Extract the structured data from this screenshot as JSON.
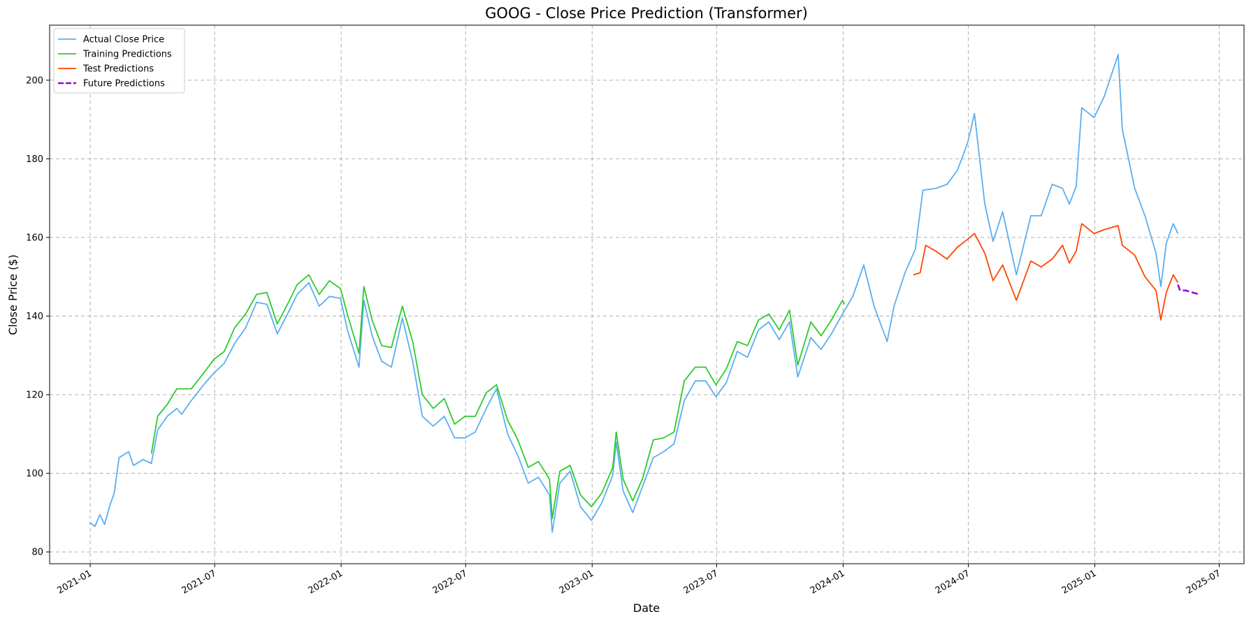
{
  "chart_data": {
    "type": "line",
    "title": "GOOG - Close Price Prediction (Transformer)",
    "xlabel": "Date",
    "ylabel": "Close Price ($)",
    "xlim": [
      "2020-11-03",
      "2025-08-06"
    ],
    "ylim": [
      77,
      214
    ],
    "x_ticks": [
      "2021-01",
      "2021-07",
      "2022-01",
      "2022-07",
      "2023-01",
      "2023-07",
      "2024-01",
      "2024-07",
      "2025-01",
      "2025-07"
    ],
    "y_ticks": [
      80,
      100,
      120,
      140,
      160,
      180,
      200
    ],
    "grid": true,
    "legend_position": "top-left",
    "colors": {
      "actual": "#5aaef2",
      "training": "#2ccb2c",
      "test": "#ff4500",
      "future": "#9400d3"
    },
    "series": [
      {
        "name": "Actual Close Price",
        "color": "#5aaef2",
        "style": "solid",
        "points": [
          [
            "2020-12-31",
            87.5
          ],
          [
            "2021-01-08",
            86.5
          ],
          [
            "2021-01-15",
            89.5
          ],
          [
            "2021-01-22",
            87.0
          ],
          [
            "2021-01-29",
            91.5
          ],
          [
            "2021-02-05",
            95.0
          ],
          [
            "2021-02-12",
            104.0
          ],
          [
            "2021-02-26",
            105.5
          ],
          [
            "2021-03-05",
            102.0
          ],
          [
            "2021-03-19",
            103.5
          ],
          [
            "2021-03-31",
            102.5
          ],
          [
            "2021-04-09",
            111.0
          ],
          [
            "2021-04-23",
            114.5
          ],
          [
            "2021-05-07",
            116.5
          ],
          [
            "2021-05-14",
            115.0
          ],
          [
            "2021-05-28",
            118.5
          ],
          [
            "2021-06-15",
            122.5
          ],
          [
            "2021-06-30",
            125.5
          ],
          [
            "2021-07-15",
            128.0
          ],
          [
            "2021-07-30",
            133.0
          ],
          [
            "2021-08-15",
            137.0
          ],
          [
            "2021-08-31",
            143.5
          ],
          [
            "2021-09-15",
            143.0
          ],
          [
            "2021-09-30",
            135.5
          ],
          [
            "2021-10-15",
            140.5
          ],
          [
            "2021-10-29",
            145.5
          ],
          [
            "2021-11-15",
            148.5
          ],
          [
            "2021-11-30",
            142.5
          ],
          [
            "2021-12-15",
            145.0
          ],
          [
            "2021-12-31",
            144.5
          ],
          [
            "2022-01-10",
            136.5
          ],
          [
            "2022-01-27",
            127.0
          ],
          [
            "2022-02-03",
            144.0
          ],
          [
            "2022-02-15",
            135.0
          ],
          [
            "2022-03-01",
            128.5
          ],
          [
            "2022-03-15",
            127.0
          ],
          [
            "2022-03-31",
            139.5
          ],
          [
            "2022-04-15",
            128.5
          ],
          [
            "2022-04-29",
            114.5
          ],
          [
            "2022-05-15",
            112.0
          ],
          [
            "2022-05-31",
            114.5
          ],
          [
            "2022-06-15",
            109.0
          ],
          [
            "2022-06-30",
            109.0
          ],
          [
            "2022-07-15",
            110.5
          ],
          [
            "2022-07-31",
            116.5
          ],
          [
            "2022-08-15",
            121.5
          ],
          [
            "2022-08-31",
            110.0
          ],
          [
            "2022-09-15",
            104.5
          ],
          [
            "2022-09-30",
            97.5
          ],
          [
            "2022-10-15",
            99.0
          ],
          [
            "2022-10-31",
            94.5
          ],
          [
            "2022-11-04",
            85.0
          ],
          [
            "2022-11-15",
            97.5
          ],
          [
            "2022-11-30",
            100.5
          ],
          [
            "2022-12-15",
            91.5
          ],
          [
            "2022-12-31",
            88.0
          ],
          [
            "2023-01-15",
            92.5
          ],
          [
            "2023-01-31",
            99.5
          ],
          [
            "2023-02-05",
            108.0
          ],
          [
            "2023-02-15",
            95.5
          ],
          [
            "2023-03-01",
            90.0
          ],
          [
            "2023-03-15",
            96.5
          ],
          [
            "2023-03-31",
            104.0
          ],
          [
            "2023-04-15",
            105.5
          ],
          [
            "2023-04-30",
            107.5
          ],
          [
            "2023-05-15",
            118.5
          ],
          [
            "2023-05-31",
            123.5
          ],
          [
            "2023-06-15",
            123.5
          ],
          [
            "2023-06-30",
            119.5
          ],
          [
            "2023-07-15",
            123.0
          ],
          [
            "2023-07-31",
            131.0
          ],
          [
            "2023-08-15",
            129.5
          ],
          [
            "2023-08-31",
            136.5
          ],
          [
            "2023-09-15",
            138.5
          ],
          [
            "2023-09-30",
            134.0
          ],
          [
            "2023-10-15",
            138.5
          ],
          [
            "2023-10-27",
            124.5
          ],
          [
            "2023-11-15",
            134.5
          ],
          [
            "2023-11-30",
            131.5
          ],
          [
            "2023-12-15",
            135.5
          ],
          [
            "2023-12-31",
            140.5
          ],
          [
            "2024-01-15",
            145.0
          ],
          [
            "2024-01-31",
            153.0
          ],
          [
            "2024-02-15",
            142.5
          ],
          [
            "2024-03-05",
            133.5
          ],
          [
            "2024-03-15",
            142.5
          ],
          [
            "2024-03-31",
            151.0
          ],
          [
            "2024-04-15",
            157.0
          ],
          [
            "2024-04-26",
            172.0
          ],
          [
            "2024-05-15",
            172.5
          ],
          [
            "2024-05-31",
            173.5
          ],
          [
            "2024-06-15",
            177.0
          ],
          [
            "2024-06-30",
            184.0
          ],
          [
            "2024-07-10",
            191.5
          ],
          [
            "2024-07-25",
            168.5
          ],
          [
            "2024-08-06",
            159.0
          ],
          [
            "2024-08-20",
            166.5
          ],
          [
            "2024-09-09",
            150.5
          ],
          [
            "2024-09-30",
            165.5
          ],
          [
            "2024-10-15",
            165.5
          ],
          [
            "2024-10-31",
            173.5
          ],
          [
            "2024-11-15",
            172.5
          ],
          [
            "2024-11-25",
            168.5
          ],
          [
            "2024-12-05",
            173.0
          ],
          [
            "2024-12-13",
            193.0
          ],
          [
            "2024-12-31",
            190.5
          ],
          [
            "2025-01-15",
            196.0
          ],
          [
            "2025-02-04",
            206.5
          ],
          [
            "2025-02-10",
            187.5
          ],
          [
            "2025-02-28",
            172.5
          ],
          [
            "2025-03-15",
            165.5
          ],
          [
            "2025-03-31",
            156.0
          ],
          [
            "2025-04-07",
            147.5
          ],
          [
            "2025-04-15",
            158.5
          ],
          [
            "2025-04-25",
            163.5
          ],
          [
            "2025-05-02",
            161.0
          ]
        ]
      },
      {
        "name": "Training Predictions",
        "color": "#2ccb2c",
        "style": "solid",
        "points": [
          [
            "2021-03-31",
            105.0
          ],
          [
            "2021-04-09",
            114.5
          ],
          [
            "2021-04-23",
            117.5
          ],
          [
            "2021-05-07",
            121.5
          ],
          [
            "2021-05-28",
            121.5
          ],
          [
            "2021-06-15",
            125.5
          ],
          [
            "2021-06-30",
            129.0
          ],
          [
            "2021-07-15",
            131.0
          ],
          [
            "2021-07-30",
            137.0
          ],
          [
            "2021-08-15",
            140.5
          ],
          [
            "2021-08-31",
            145.5
          ],
          [
            "2021-09-15",
            146.0
          ],
          [
            "2021-09-30",
            138.0
          ],
          [
            "2021-10-15",
            143.0
          ],
          [
            "2021-10-29",
            148.0
          ],
          [
            "2021-11-15",
            150.5
          ],
          [
            "2021-11-30",
            145.5
          ],
          [
            "2021-12-15",
            149.0
          ],
          [
            "2021-12-31",
            147.0
          ],
          [
            "2022-01-10",
            140.5
          ],
          [
            "2022-01-27",
            130.5
          ],
          [
            "2022-02-03",
            147.5
          ],
          [
            "2022-02-15",
            139.0
          ],
          [
            "2022-03-01",
            132.5
          ],
          [
            "2022-03-15",
            132.0
          ],
          [
            "2022-03-31",
            142.5
          ],
          [
            "2022-04-15",
            133.5
          ],
          [
            "2022-04-29",
            120.0
          ],
          [
            "2022-05-15",
            116.5
          ],
          [
            "2022-05-31",
            119.0
          ],
          [
            "2022-06-15",
            112.5
          ],
          [
            "2022-06-30",
            114.5
          ],
          [
            "2022-07-15",
            114.5
          ],
          [
            "2022-07-31",
            120.5
          ],
          [
            "2022-08-15",
            122.5
          ],
          [
            "2022-08-31",
            113.5
          ],
          [
            "2022-09-15",
            108.5
          ],
          [
            "2022-09-30",
            101.5
          ],
          [
            "2022-10-15",
            103.0
          ],
          [
            "2022-10-31",
            98.5
          ],
          [
            "2022-11-04",
            88.5
          ],
          [
            "2022-11-15",
            100.5
          ],
          [
            "2022-11-30",
            102.0
          ],
          [
            "2022-12-15",
            94.5
          ],
          [
            "2022-12-31",
            91.5
          ],
          [
            "2023-01-15",
            95.0
          ],
          [
            "2023-01-31",
            101.5
          ],
          [
            "2023-02-05",
            110.5
          ],
          [
            "2023-02-15",
            98.5
          ],
          [
            "2023-03-01",
            93.0
          ],
          [
            "2023-03-15",
            98.5
          ],
          [
            "2023-03-31",
            108.5
          ],
          [
            "2023-04-15",
            109.0
          ],
          [
            "2023-04-30",
            110.5
          ],
          [
            "2023-05-15",
            123.5
          ],
          [
            "2023-05-31",
            127.0
          ],
          [
            "2023-06-15",
            127.0
          ],
          [
            "2023-06-30",
            122.5
          ],
          [
            "2023-07-15",
            126.5
          ],
          [
            "2023-07-31",
            133.5
          ],
          [
            "2023-08-15",
            132.5
          ],
          [
            "2023-08-31",
            139.0
          ],
          [
            "2023-09-15",
            140.5
          ],
          [
            "2023-09-30",
            136.5
          ],
          [
            "2023-10-15",
            141.5
          ],
          [
            "2023-10-27",
            127.5
          ],
          [
            "2023-11-15",
            138.5
          ],
          [
            "2023-11-30",
            135.0
          ],
          [
            "2023-12-15",
            139.0
          ],
          [
            "2023-12-31",
            144.0
          ],
          [
            "2024-01-03",
            143.0
          ]
        ]
      },
      {
        "name": "Test Predictions",
        "color": "#ff4500",
        "style": "solid",
        "points": [
          [
            "2024-04-12",
            150.5
          ],
          [
            "2024-04-22",
            151.0
          ],
          [
            "2024-04-30",
            158.0
          ],
          [
            "2024-05-15",
            156.5
          ],
          [
            "2024-05-31",
            154.5
          ],
          [
            "2024-06-15",
            157.5
          ],
          [
            "2024-06-30",
            159.5
          ],
          [
            "2024-07-10",
            161.0
          ],
          [
            "2024-07-25",
            156.0
          ],
          [
            "2024-08-06",
            149.0
          ],
          [
            "2024-08-20",
            153.0
          ],
          [
            "2024-09-09",
            144.0
          ],
          [
            "2024-09-30",
            154.0
          ],
          [
            "2024-10-15",
            152.5
          ],
          [
            "2024-10-31",
            154.5
          ],
          [
            "2024-11-15",
            158.0
          ],
          [
            "2024-11-25",
            153.5
          ],
          [
            "2024-12-05",
            156.5
          ],
          [
            "2024-12-13",
            163.5
          ],
          [
            "2024-12-31",
            161.0
          ],
          [
            "2025-01-15",
            162.0
          ],
          [
            "2025-02-04",
            163.0
          ],
          [
            "2025-02-10",
            158.0
          ],
          [
            "2025-02-28",
            155.5
          ],
          [
            "2025-03-15",
            150.0
          ],
          [
            "2025-03-31",
            146.5
          ],
          [
            "2025-04-07",
            139.0
          ],
          [
            "2025-04-15",
            146.0
          ],
          [
            "2025-04-25",
            150.5
          ],
          [
            "2025-05-02",
            148.5
          ]
        ]
      },
      {
        "name": "Future Predictions",
        "color": "#9400d3",
        "style": "dashed",
        "points": [
          [
            "2025-05-02",
            148.0
          ],
          [
            "2025-05-05",
            146.5
          ],
          [
            "2025-05-14",
            146.5
          ],
          [
            "2025-05-23",
            146.0
          ],
          [
            "2025-06-02",
            145.5
          ]
        ]
      }
    ]
  }
}
